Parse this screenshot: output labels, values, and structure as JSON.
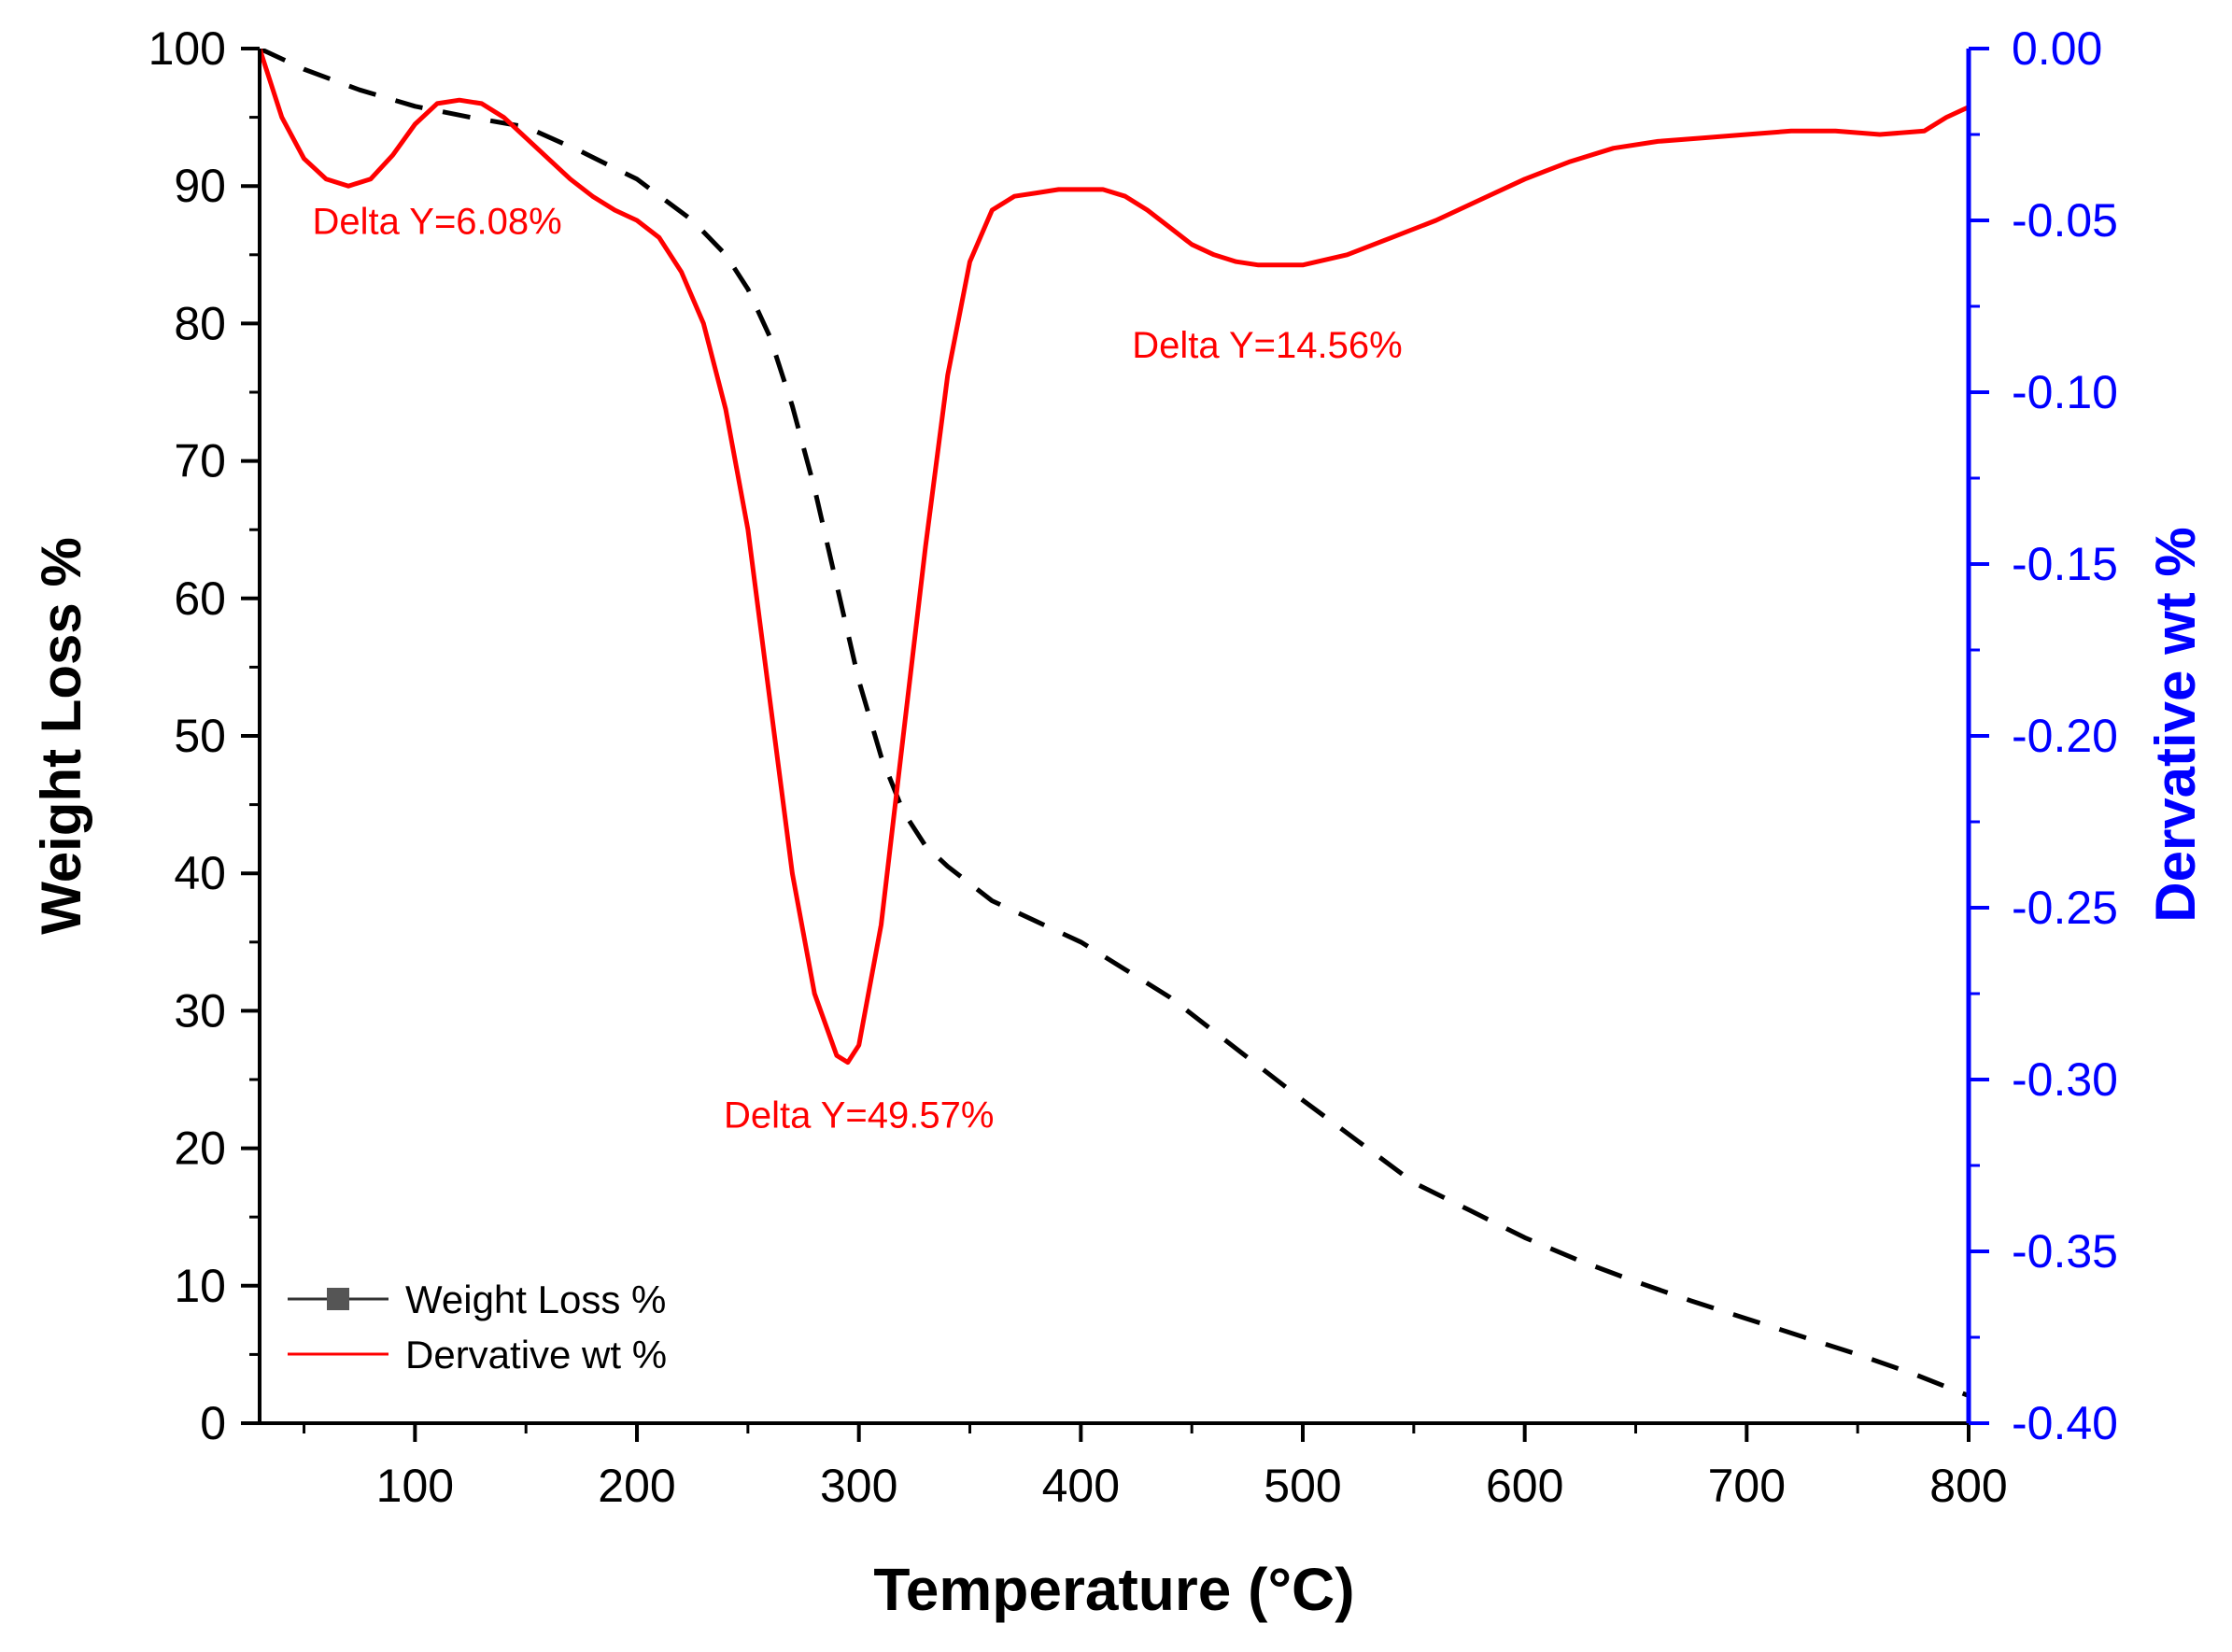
{
  "chart_data": {
    "type": "line",
    "title": "",
    "xlabel": "Temperature (°C)",
    "ylabel_left": "Weight Loss %",
    "ylabel_right": "Dervative wt %",
    "xlim": [
      30,
      800
    ],
    "ylim_left": [
      0,
      100
    ],
    "ylim_right": [
      -0.4,
      0.0
    ],
    "x_ticks": [
      100,
      200,
      300,
      400,
      500,
      600,
      700,
      800
    ],
    "y_ticks_left": [
      0,
      10,
      20,
      30,
      40,
      50,
      60,
      70,
      80,
      90,
      100
    ],
    "y_ticks_right": [
      "0.00",
      "-0.05",
      "-0.10",
      "-0.15",
      "-0.20",
      "-0.25",
      "-0.30",
      "-0.35",
      "-0.40"
    ],
    "grid": false,
    "legend_position": "bottom-left",
    "colors": {
      "weight": "#000000",
      "derivative": "#ff0000",
      "right_axis": "#0000ff",
      "left_axis": "#000000"
    },
    "series": [
      {
        "name": "Weight Loss %",
        "axis": "left",
        "style": "dashed",
        "x": [
          30,
          50,
          75,
          100,
          125,
          150,
          175,
          200,
          225,
          240,
          250,
          260,
          270,
          280,
          290,
          300,
          310,
          320,
          330,
          340,
          360,
          380,
          400,
          420,
          440,
          460,
          480,
          500,
          525,
          550,
          575,
          600,
          625,
          650,
          675,
          700,
          725,
          750,
          775,
          800
        ],
        "y": [
          100,
          98.5,
          97,
          95.8,
          95.0,
          94.3,
          92.5,
          90.5,
          87.5,
          85.0,
          82.5,
          79.0,
          74.0,
          68.0,
          61.0,
          54.0,
          48.5,
          44.5,
          42.0,
          40.5,
          38.0,
          36.5,
          35.0,
          33.0,
          31.0,
          28.5,
          26.0,
          23.5,
          20.5,
          17.5,
          15.5,
          13.5,
          11.8,
          10.3,
          8.9,
          7.6,
          6.3,
          5.0,
          3.6,
          2.0
        ]
      },
      {
        "name": "Dervative wt %",
        "axis": "right",
        "style": "solid",
        "x": [
          30,
          40,
          50,
          60,
          70,
          80,
          90,
          100,
          110,
          120,
          130,
          140,
          150,
          160,
          170,
          180,
          190,
          200,
          210,
          220,
          230,
          240,
          250,
          260,
          270,
          280,
          290,
          295,
          300,
          310,
          320,
          330,
          340,
          350,
          360,
          370,
          380,
          390,
          400,
          410,
          420,
          430,
          440,
          450,
          460,
          470,
          480,
          490,
          500,
          520,
          540,
          560,
          580,
          600,
          620,
          640,
          660,
          680,
          700,
          720,
          740,
          760,
          780,
          790,
          800
        ],
        "y": [
          0.0,
          -0.02,
          -0.032,
          -0.038,
          -0.04,
          -0.038,
          -0.031,
          -0.022,
          -0.016,
          -0.015,
          -0.016,
          -0.02,
          -0.026,
          -0.032,
          -0.038,
          -0.043,
          -0.047,
          -0.05,
          -0.055,
          -0.065,
          -0.08,
          -0.105,
          -0.14,
          -0.19,
          -0.24,
          -0.275,
          -0.293,
          -0.295,
          -0.29,
          -0.255,
          -0.2,
          -0.145,
          -0.095,
          -0.062,
          -0.047,
          -0.043,
          -0.042,
          -0.041,
          -0.041,
          -0.041,
          -0.043,
          -0.047,
          -0.052,
          -0.057,
          -0.06,
          -0.062,
          -0.063,
          -0.063,
          -0.063,
          -0.06,
          -0.055,
          -0.05,
          -0.044,
          -0.038,
          -0.033,
          -0.029,
          -0.027,
          -0.026,
          -0.025,
          -0.024,
          -0.024,
          -0.025,
          -0.024,
          -0.02,
          -0.017
        ]
      }
    ],
    "annotations": [
      {
        "text": "Delta Y=6.08%",
        "x": 110,
        "y_left": 86.5
      },
      {
        "text": "Delta Y=49.57%",
        "x": 300,
        "y_left": 21.5
      },
      {
        "text": "Delta Y=14.56%",
        "x": 484,
        "y_left": 77.5
      }
    ]
  }
}
